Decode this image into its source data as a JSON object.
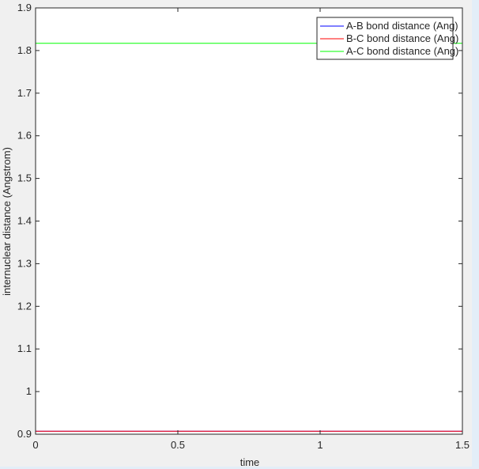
{
  "chart_data": {
    "type": "line",
    "title": "",
    "xlabel": "time",
    "ylabel": "internuclear distance (Angstrom)",
    "xlim": [
      0,
      1.5
    ],
    "ylim": [
      0.9,
      1.9
    ],
    "xticks": [
      "0",
      "0.5",
      "1",
      "1.5"
    ],
    "yticks": [
      "0.9",
      "1",
      "1.1",
      "1.2",
      "1.3",
      "1.4",
      "1.5",
      "1.6",
      "1.7",
      "1.8",
      "1.9"
    ],
    "grid": false,
    "legend_position": "top-right",
    "x": [
      0,
      0.25,
      0.5,
      0.75,
      1.0,
      1.25,
      1.5
    ],
    "series": [
      {
        "name": "A-B bond distance (Ang)",
        "color": "#0000ff",
        "values": [
          0.907,
          0.907,
          0.907,
          0.907,
          0.907,
          0.907,
          0.907
        ]
      },
      {
        "name": "B-C bond distance (Ang)",
        "color": "#ff0000",
        "values": [
          0.907,
          0.907,
          0.907,
          0.907,
          0.907,
          0.907,
          0.907
        ]
      },
      {
        "name": "A-C bond distance (Ang)",
        "color": "#00ff00",
        "values": [
          1.817,
          1.817,
          1.817,
          1.817,
          1.817,
          1.817,
          1.817
        ]
      }
    ]
  }
}
